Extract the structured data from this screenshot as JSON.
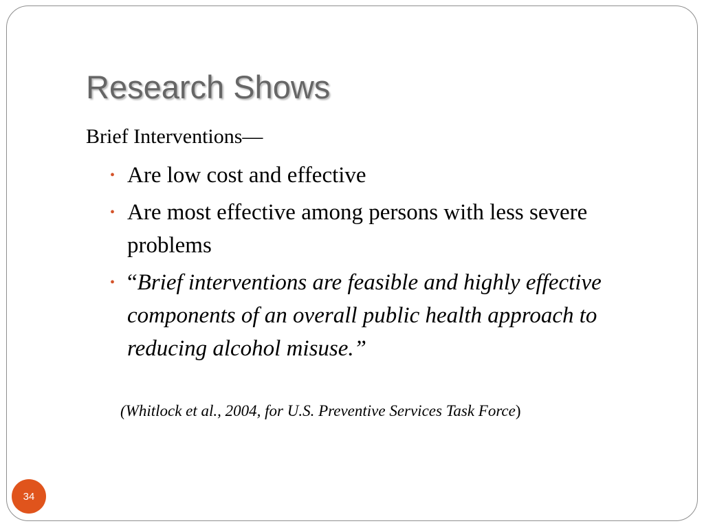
{
  "slide": {
    "title": "Research Shows",
    "lead": "Brief Interventions—",
    "bullets": [
      {
        "text": "Are low cost and effective"
      },
      {
        "text": "Are most effective among persons with less severe problems"
      },
      {
        "open_quote": "“",
        "quote": "Brief interventions are feasible and highly effective components of an overall public health approach to reducing alcohol misuse.”"
      }
    ],
    "citation": "(Whitlock et al., 2004, for U.S. Preventive Services Task Force",
    "citation_close": ")",
    "page_number": "34",
    "bullet_glyph": "•"
  },
  "colors": {
    "title": "#666666",
    "accent": "#e0541c",
    "bullet": "#d4532a",
    "border": "#8e8e8e"
  }
}
